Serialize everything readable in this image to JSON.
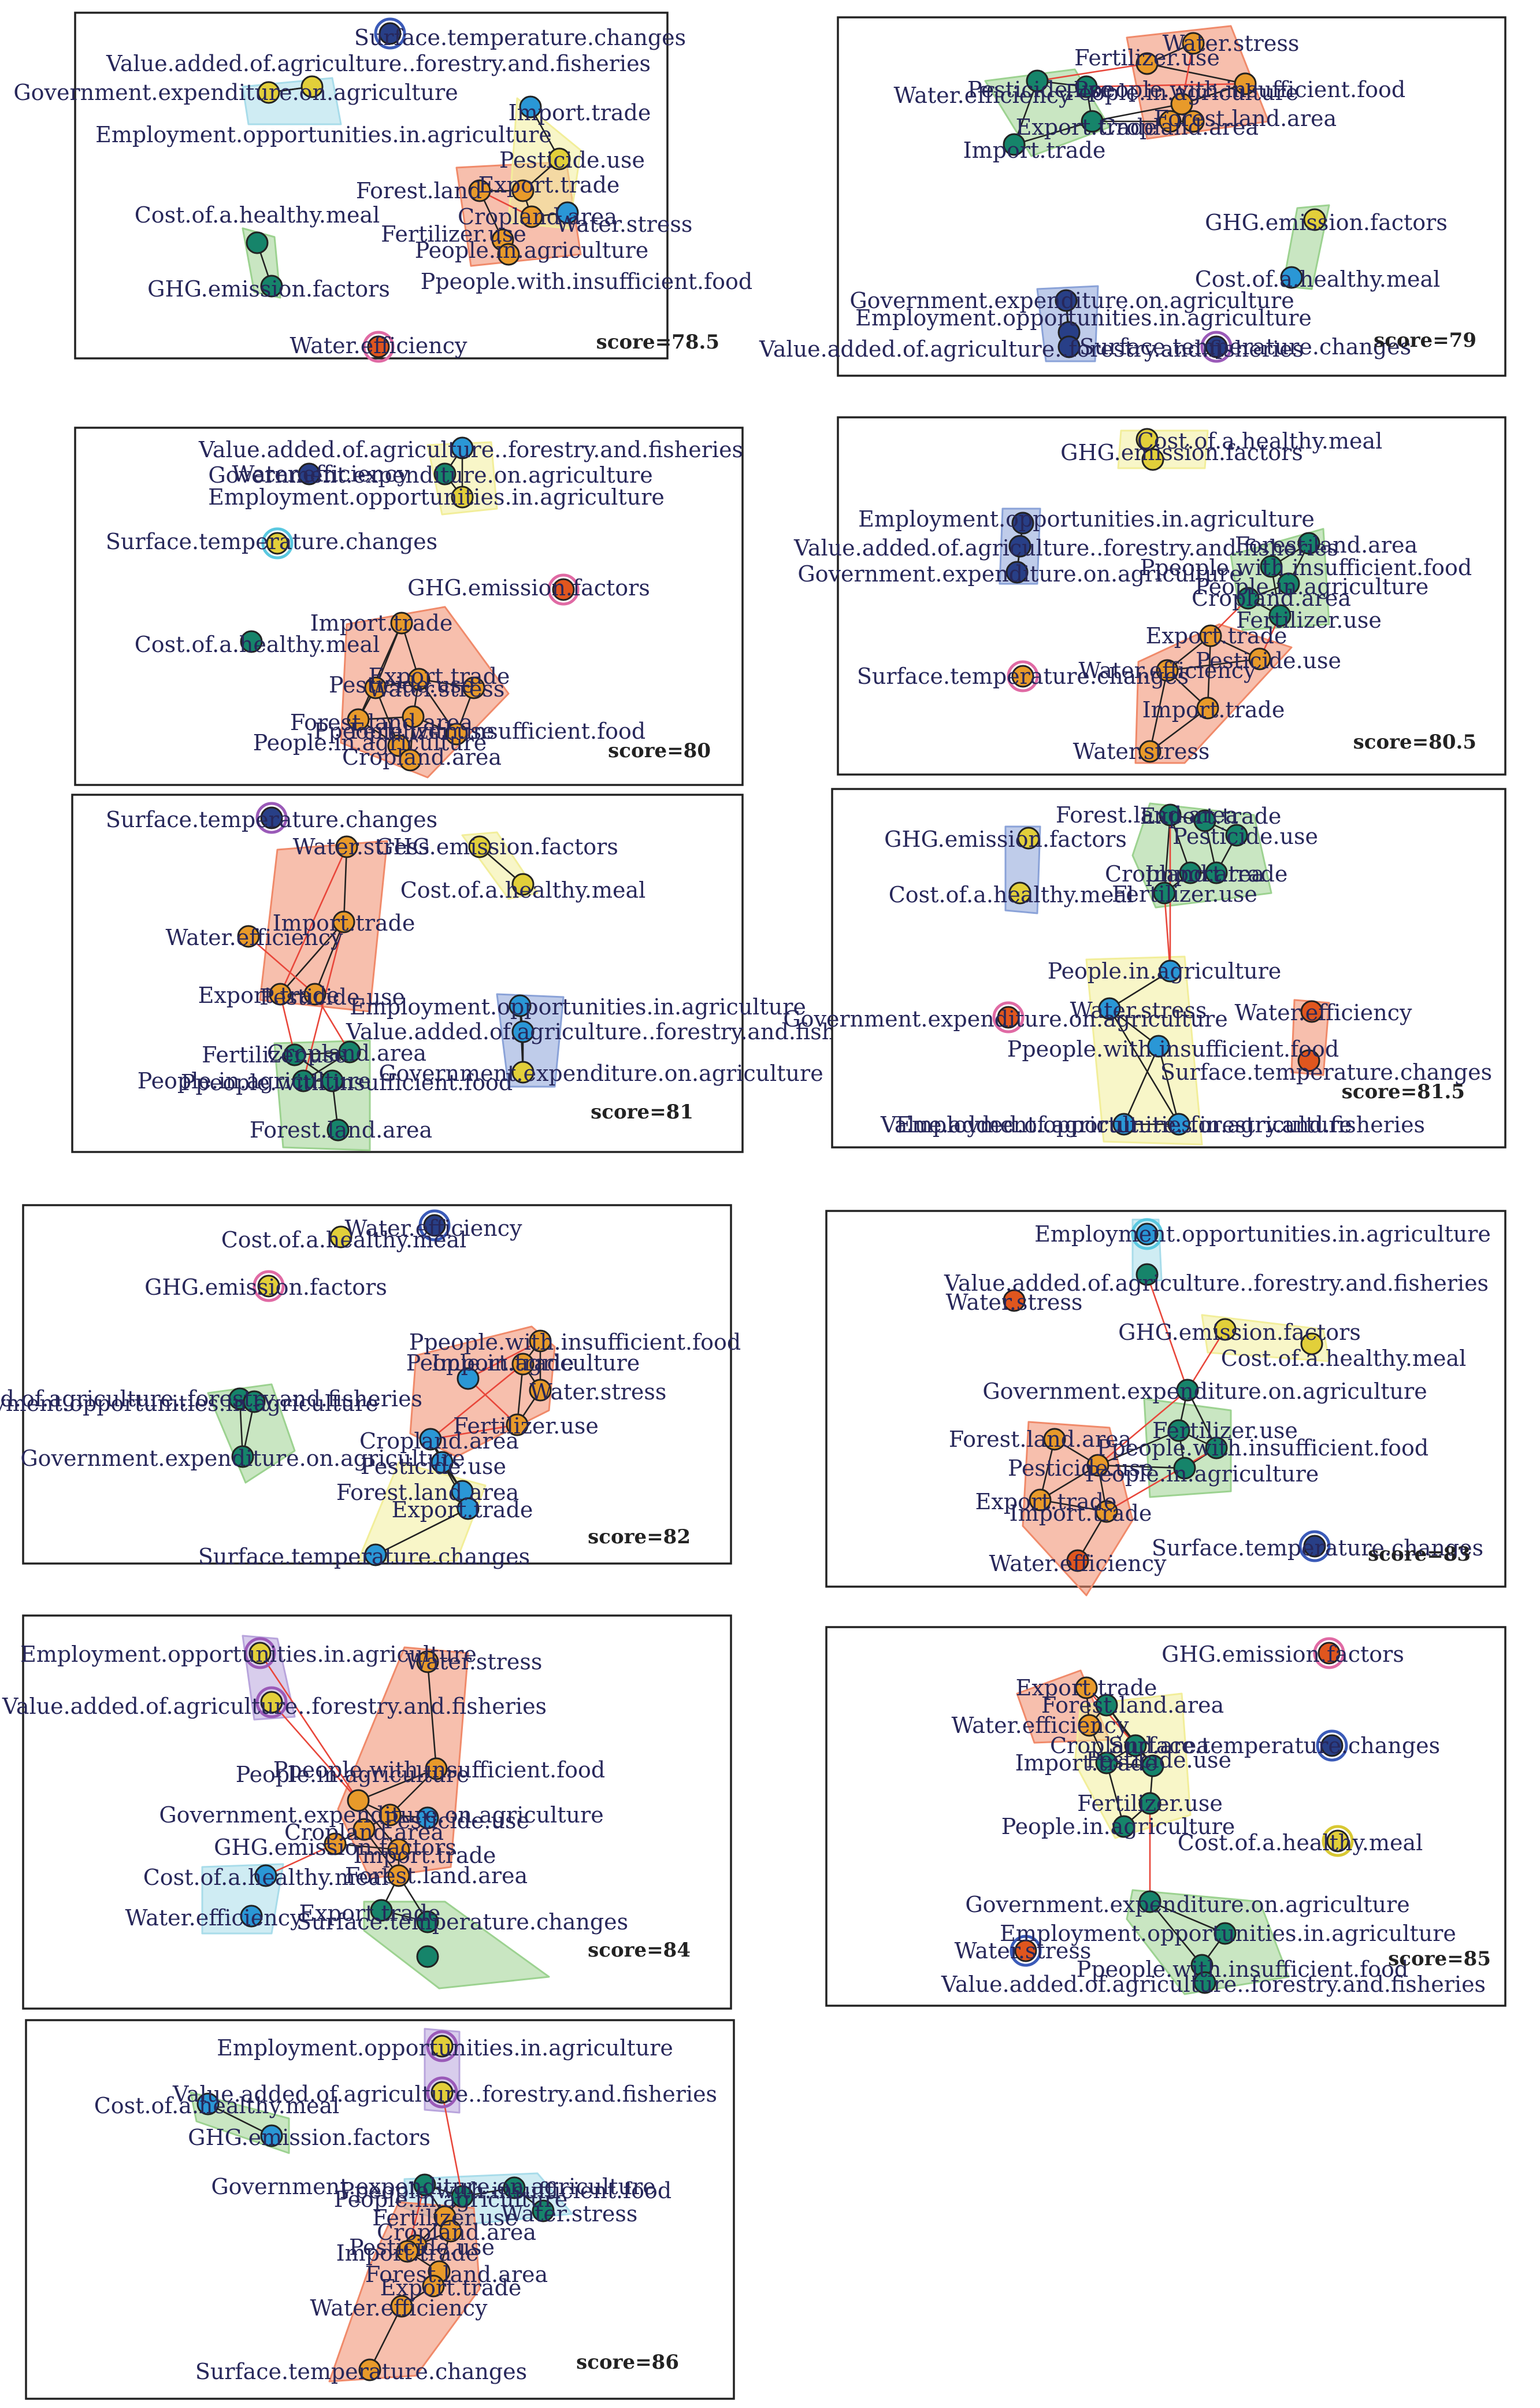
{
  "figure": "co-occurrence network panels by score",
  "colors": {
    "orange": "#e89a2a",
    "teal": "#16846a",
    "blue": "#2a97d6",
    "yellow": "#e2cf3a",
    "navy": "#283f87",
    "red_orange": "#e0561e",
    "hull_red": "#f08a6a",
    "hull_green": "#9cd290",
    "hull_blue": "#8aa2d8",
    "hull_cyan": "#a8dcea",
    "hull_yellow": "#f2ee9a",
    "hull_purple": "#b8a4dc",
    "ring_purple": "#9a5ab8",
    "ring_cyan": "#5ac8e0",
    "ring_pink": "#e06aa4",
    "ring_blue": "#3a5ab8",
    "ring_yellow": "#d8c832",
    "red_edge": "#e8463a"
  },
  "panels": [
    {
      "score": "score=78.5",
      "labels": [
        "Surface.temperature.changes",
        "Value.added.of.agriculture..forestry.and.fisheries",
        "Government.expenditure.on.agriculture",
        "Employment.opportunities.in.agriculture",
        "Import.trade",
        "Pesticide.use",
        "Forest.land",
        "Export.trade",
        "Cropland.area",
        "Water.stress",
        "Fertilizer.use",
        "People.in.agriculture",
        "Ppeople.with.insufficient.food",
        "Cost.of.a.healthy.meal",
        "GHG.emission.factors",
        "Water.efficiency"
      ]
    },
    {
      "score": "score=79",
      "labels": [
        "Water.stress",
        "Fertilizer.use",
        "Water.efficiency",
        "Pesticide.use",
        "Ppeople.with.insufficient.food",
        "People.in.agriculture",
        "Export.trade",
        "Cropland.area",
        "Forest.land.area",
        "Import.trade",
        "GHG.emission.factors",
        "Cost.of.a.healthy.meal",
        "Government.expenditure.on.agriculture",
        "Employment.opportunities.in.agriculture",
        "Value.added.of.agriculture..forestry.and.fisheries",
        "Surface.temperature.changes"
      ]
    },
    {
      "score": "score=80",
      "labels": [
        "Value.added.of.agriculture..forestry.and.fisheries",
        "Water.efficiency",
        "Government.expenditure.on.agriculture",
        "Employment.opportunities.in.agriculture",
        "Surface.temperature.changes",
        "GHG.emission.factors",
        "Import.trade",
        "Cost.of.a.healthy.meal",
        "Pesticide.use",
        "Export.trade",
        "Water.stress",
        "Forest.land.area",
        "Fertilizer.use",
        "Ppeople.with.insufficient.food",
        "People.in.agriculture",
        "Cropland.area"
      ]
    },
    {
      "score": "score=80.5",
      "labels": [
        "Cost.of.a.healthy.meal",
        "GHG.emission.factors",
        "Employment.opportunities.in.agriculture",
        "Value.added.of.agriculture..forestry.and.fisheries",
        "Forest.land.area",
        "Government.expenditure.on.agriculture",
        "Ppeople.with.insufficient.food",
        "People.in.agriculture",
        "Cropland.area",
        "Fertilizer.use",
        "Export.trade",
        "Pesticide.use",
        "Water.efficiency",
        "Surface.temperature.changes",
        "Import.trade",
        "Water.stress"
      ]
    },
    {
      "score": "score=81",
      "labels": [
        "Surface.temperature.changes",
        "Water.stress",
        "GHG.emission.factors",
        "Cost.of.a.healthy.meal",
        "Import.trade",
        "Water.efficiency",
        "Export.trade",
        "Pesticide.use",
        "Employment.opportunities.in.agriculture",
        "Value.added.of.agriculture..forestry.and.fisheries",
        "Fertilizer.use",
        "Cropland.area",
        "People.in.agriculture",
        "Ppeople.with.insufficient.food",
        "Government.expenditure.on.agriculture",
        "Forest.land.area"
      ]
    },
    {
      "score": "score=81.5",
      "labels": [
        "Forest.land.area",
        "Export.trade",
        "GHG.emission.factors",
        "Pesticide.use",
        "Cropland.area",
        "Import.trade",
        "Fertilizer.use",
        "Cost.of.a.healthy.meal",
        "People.in.agriculture",
        "Government.expenditure.on.agriculture",
        "Water.stress",
        "Water.efficiency",
        "Ppeople.with.insufficient.food",
        "Surface.temperature.changes",
        "Employment.opportunities.in.agriculture",
        "Value.added.of.agriculture..forestry.and.fisheries"
      ]
    },
    {
      "score": "score=82",
      "labels": [
        "Water.efficiency",
        "Cost.of.a.healthy.meal",
        "GHG.emission.factors",
        "Ppeople.with.insufficient.food",
        "People.in.agriculture",
        "Import.trade",
        "Value.added.of.agriculture..forestry.and.fisheries",
        "Employment.opportunities.in.agriculture",
        "Water.stress",
        "Fertilizer.use",
        "Government.expenditure.on.agriculture",
        "Cropland.area",
        "Pesticide.use",
        "Forest.land.area",
        "Export.trade",
        "Surface.temperature.changes"
      ]
    },
    {
      "score": "score=83",
      "labels": [
        "Employment.opportunities.in.agriculture",
        "Value.added.of.agriculture..forestry.and.fisheries",
        "Water.stress",
        "GHG.emission.factors",
        "Cost.of.a.healthy.meal",
        "Government.expenditure.on.agriculture",
        "Fertilizer.use",
        "Forest.land.area",
        "Ppeople.with.insufficient.food",
        "Pesticide.use",
        "People.in.agriculture",
        "Export.trade",
        "Import.trade",
        "Surface.temperature.changes",
        "Water.efficiency"
      ]
    },
    {
      "score": "score=84",
      "labels": [
        "Employment.opportunities.in.agriculture",
        "Water.stress",
        "Value.added.of.agriculture..forestry.and.fisheries",
        "Ppeople.with.insufficient.food",
        "People.in.agriculture",
        "Government.expenditure.on.agriculture",
        "Cropland.area",
        "Pesticide.use",
        "GHG.emission.factors",
        "Import.trade",
        "Cost.of.a.healthy.meal",
        "Forest.land.area",
        "Water.efficiency",
        "Export.trade",
        "Surface.temperature.changes"
      ]
    },
    {
      "score": "score=85",
      "labels": [
        "GHG.emission.factors",
        "Export.trade",
        "Forest.land.area",
        "Water.efficiency",
        "Cropland.area",
        "Import.trade",
        "Pesticide.use",
        "Surface.temperature.changes",
        "Fertilizer.use",
        "People.in.agriculture",
        "Cost.of.a.healthy.meal",
        "Government.expenditure.on.agriculture",
        "Employment.opportunities.in.agriculture",
        "Water.stress",
        "Ppeople.with.insufficient.food",
        "Value.added.of.agriculture..forestry.and.fisheries"
      ]
    },
    {
      "score": "score=86",
      "labels": [
        "Employment.opportunities.in.agriculture",
        "Value.added.of.agriculture..forestry.and.fisheries",
        "Cost.of.a.healthy.meal",
        "GHG.emission.factors",
        "Government.expenditure.on.agriculture",
        "Ppeople.with.insufficient.food",
        "People.in.agriculture",
        "Water.stress",
        "Fertilizer.use",
        "Cropland.area",
        "Pesticide.use",
        "Import.trade",
        "Forest.land.area",
        "Export.trade",
        "Water.efficiency",
        "Surface.temperature.changes"
      ]
    }
  ]
}
